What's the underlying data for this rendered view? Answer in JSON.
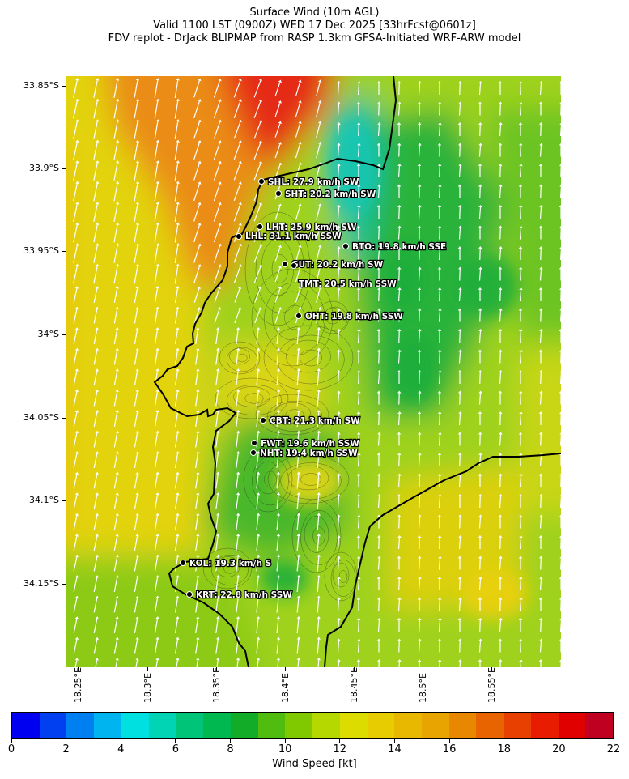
{
  "title": {
    "line1": "Surface Wind (10m AGL)",
    "line2": "Valid 1100 LST (0900Z) WED 17 Dec 2025 [33hrFcst@0601z]",
    "line3": "FDV replot - DrJack BLIPMAP from RASP 1.3km GFSA-Initiated WRF-ARW model"
  },
  "map": {
    "lat_labels": [
      "33.85°S",
      "33.9°S",
      "33.95°S",
      "34°S",
      "34.05°S",
      "34.1°S",
      "34.15°S"
    ],
    "lon_labels": [
      "18.25°E",
      "18.3°E",
      "18.35°E",
      "18.4°E",
      "18.45°E",
      "18.5°E",
      "18.55°E"
    ],
    "stations": [
      {
        "code": "SHL",
        "label": "SHL: 27.9 km/h SW"
      },
      {
        "code": "SHT",
        "label": "SHT: 20.2 km/h SW"
      },
      {
        "code": "LHT",
        "label": "LHT: 25.9 km/h SW"
      },
      {
        "code": "LHL",
        "label": "LHL: 31.1 km/h SSW"
      },
      {
        "code": "BTO",
        "label": "BTO: 19.8 km/h SSE"
      },
      {
        "code": "GUT",
        "label": "GUT: 20.2 km/h SW"
      },
      {
        "code": "TMT",
        "label": "TMT: 20.5 km/h SSW"
      },
      {
        "code": "OHT",
        "label": "OHT: 19.8 km/h SSW"
      },
      {
        "code": "CBT",
        "label": "CBT: 21.3 km/h SW"
      },
      {
        "code": "FWT",
        "label": "FWT: 19.6 km/h SSW"
      },
      {
        "code": "NHT",
        "label": "NHT: 19.4 km/h SSW"
      },
      {
        "code": "KOL",
        "label": "KOL: 19.3 km/h S"
      },
      {
        "code": "KRT",
        "label": "KRT: 22.8 km/h SSW"
      }
    ],
    "field_colors": {
      "low_green": "#1fae3a",
      "mid_green": "#5cbf1c",
      "yellow_green": "#bcd91a",
      "yellow": "#e3d612",
      "orange": "#ea8a10",
      "red": "#e8251a",
      "cyan": "#12c6b2",
      "arrow": "#ffffff",
      "coast": "#000000"
    }
  },
  "colorbar": {
    "title": "Wind Speed [kt]",
    "tick_labels": [
      "0",
      "2",
      "4",
      "6",
      "8",
      "10",
      "12",
      "14",
      "16",
      "18",
      "20",
      "22"
    ],
    "colors": [
      "#0000f0",
      "#0040f0",
      "#0080f0",
      "#00b4f0",
      "#00e0e0",
      "#00d4b4",
      "#00c478",
      "#00b850",
      "#12ac28",
      "#50bc10",
      "#80c800",
      "#b4d800",
      "#dcdc00",
      "#e6cc00",
      "#e8b800",
      "#e8a400",
      "#e88800",
      "#e86400",
      "#e84000",
      "#e81c00",
      "#e00000",
      "#c00020"
    ]
  }
}
